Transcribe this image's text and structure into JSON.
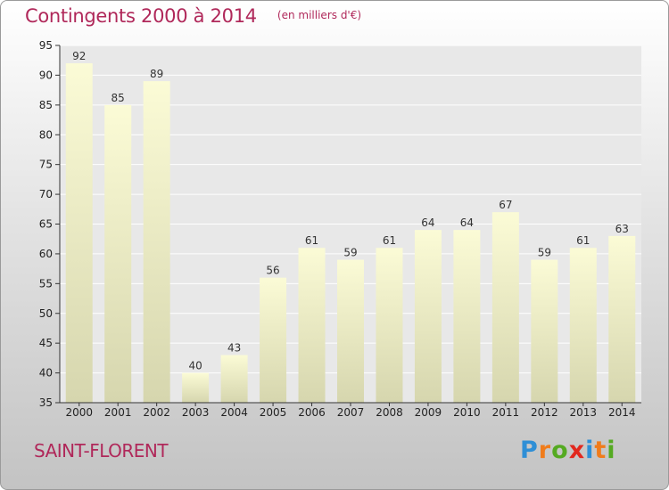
{
  "header": {
    "title": "Contingents 2000 à 2014",
    "subtitle": "(en milliers d'€)"
  },
  "footer": {
    "commune": "SAINT-FLORENT",
    "logo_letters": [
      "P",
      "r",
      "o",
      "x",
      "i",
      "t",
      "i"
    ],
    "logo_colors": [
      "#2f8fd6",
      "#f07c1b",
      "#55aa22",
      "#e2281e",
      "#2f8fd6",
      "#f07c1b",
      "#55aa22"
    ]
  },
  "colors": {
    "bar_top": "#fbfbd6",
    "bar_bottom": "#d6d6ae",
    "plot_bg": "#e8e8e8",
    "grid": "#ffffff",
    "accent": "#b0285a"
  },
  "chart_data": {
    "type": "bar",
    "categories": [
      "2000",
      "2001",
      "2002",
      "2003",
      "2004",
      "2005",
      "2006",
      "2007",
      "2008",
      "2009",
      "2010",
      "2011",
      "2012",
      "2013",
      "2014"
    ],
    "values": [
      92,
      85,
      89,
      40,
      43,
      56,
      61,
      59,
      61,
      64,
      64,
      67,
      59,
      61,
      63
    ],
    "title": "Contingents 2000 à 2014",
    "subtitle": "(en milliers d'€)",
    "xlabel": "",
    "ylabel": "",
    "ylim": [
      35,
      95
    ],
    "yticks": [
      35,
      40,
      45,
      50,
      55,
      60,
      65,
      70,
      75,
      80,
      85,
      90,
      95
    ],
    "grid": true,
    "data_labels": true
  }
}
